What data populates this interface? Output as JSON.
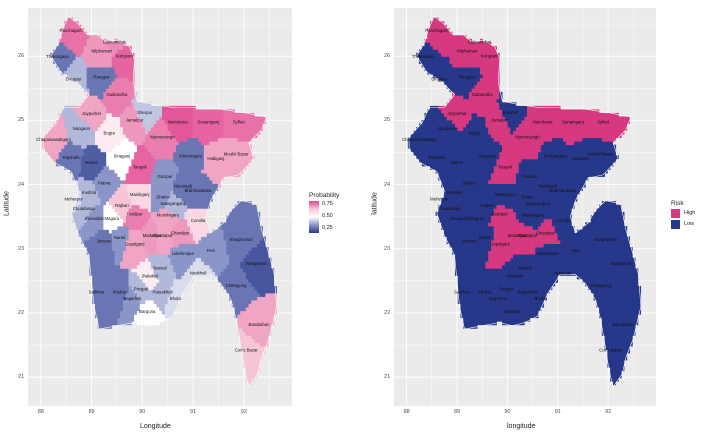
{
  "maps": [
    {
      "id": "probability",
      "xlabel": "Longitude",
      "ylabel": "Latitude",
      "x_ticks": [
        "88",
        "89",
        "90",
        "91",
        "92"
      ],
      "y_ticks": [
        "26",
        "25",
        "24",
        "23",
        "22",
        "21"
      ],
      "legend": {
        "title": "Probability",
        "labels": [
          "0.75",
          "0.50",
          "0.25"
        ],
        "gradient": [
          "#e0448f",
          "#f6c5d6",
          "#ffffff",
          "#8b95c8",
          "#27378a"
        ]
      }
    },
    {
      "id": "risk",
      "xlabel": "longitude",
      "ylabel": "latitude",
      "x_ticks": [
        "88",
        "89",
        "90",
        "91",
        "92"
      ],
      "y_ticks": [
        "26",
        "25",
        "24",
        "23",
        "22",
        "21"
      ],
      "legend": {
        "title": "Risk",
        "items": [
          {
            "label": "High",
            "color": "#d6397f"
          },
          {
            "label": "Low",
            "color": "#27378a"
          }
        ]
      }
    }
  ],
  "districts": [
    {
      "name": "Panchagarh",
      "lon": 88.6,
      "lat": 26.38,
      "prob": 0.78,
      "risk": "High"
    },
    {
      "name": "Lalmonirhat",
      "lon": 89.45,
      "lat": 26.2,
      "prob": 0.74,
      "risk": "High"
    },
    {
      "name": "Nilphamari",
      "lon": 89.2,
      "lat": 26.06,
      "prob": 0.72,
      "risk": "High"
    },
    {
      "name": "Kurigram",
      "lon": 89.65,
      "lat": 25.98,
      "prob": 0.8,
      "risk": "High"
    },
    {
      "name": "Thakurgaon",
      "lon": 88.33,
      "lat": 25.97,
      "prob": 0.3,
      "risk": "Low"
    },
    {
      "name": "Dinajpur",
      "lon": 88.65,
      "lat": 25.62,
      "prob": 0.4,
      "risk": "Low"
    },
    {
      "name": "Rangpur",
      "lon": 89.2,
      "lat": 25.65,
      "prob": 0.3,
      "risk": "Low"
    },
    {
      "name": "Gaibandha",
      "lon": 89.5,
      "lat": 25.38,
      "prob": 0.76,
      "risk": "High"
    },
    {
      "name": "Joypurhat",
      "lon": 89.0,
      "lat": 25.08,
      "prob": 0.7,
      "risk": "High"
    },
    {
      "name": "Jamalpur",
      "lon": 89.85,
      "lat": 24.98,
      "prob": 0.72,
      "risk": "High"
    },
    {
      "name": "Sherpur",
      "lon": 90.05,
      "lat": 25.1,
      "prob": 0.42,
      "risk": "Low"
    },
    {
      "name": "Netrokona",
      "lon": 90.7,
      "lat": 24.95,
      "prob": 0.82,
      "risk": "High"
    },
    {
      "name": "Sunamganj",
      "lon": 91.3,
      "lat": 24.95,
      "prob": 0.8,
      "risk": "High"
    },
    {
      "name": "Sylhet",
      "lon": 91.9,
      "lat": 24.95,
      "prob": 0.78,
      "risk": "High"
    },
    {
      "name": "Naogaon",
      "lon": 88.8,
      "lat": 24.85,
      "prob": 0.4,
      "risk": "Low"
    },
    {
      "name": "Chapainawabganj",
      "lon": 88.25,
      "lat": 24.68,
      "prob": 0.7,
      "risk": "Low"
    },
    {
      "name": "Bogra",
      "lon": 89.35,
      "lat": 24.78,
      "prob": 0.55,
      "risk": "Low"
    },
    {
      "name": "Mymensingh",
      "lon": 90.4,
      "lat": 24.72,
      "prob": 0.76,
      "risk": "High"
    },
    {
      "name": "Moulvi Bazar",
      "lon": 91.85,
      "lat": 24.45,
      "prob": 0.7,
      "risk": "Low"
    },
    {
      "name": "Habiganj",
      "lon": 91.45,
      "lat": 24.38,
      "prob": 0.7,
      "risk": "Low"
    },
    {
      "name": "Kishoreganj",
      "lon": 90.95,
      "lat": 24.42,
      "prob": 0.3,
      "risk": "Low"
    },
    {
      "name": "Rajshahi",
      "lon": 88.6,
      "lat": 24.4,
      "prob": 0.3,
      "risk": "Low"
    },
    {
      "name": "Sirajganj",
      "lon": 89.6,
      "lat": 24.42,
      "prob": 0.5,
      "risk": "Low"
    },
    {
      "name": "Natore",
      "lon": 89.0,
      "lat": 24.32,
      "prob": 0.26,
      "risk": "Low"
    },
    {
      "name": "Tangail",
      "lon": 89.95,
      "lat": 24.25,
      "prob": 0.8,
      "risk": "High"
    },
    {
      "name": "Gazipur",
      "lon": 90.45,
      "lat": 24.1,
      "prob": 0.35,
      "risk": "Low"
    },
    {
      "name": "Pabna",
      "lon": 89.25,
      "lat": 24.0,
      "prob": 0.35,
      "risk": "Low"
    },
    {
      "name": "Narsingdi",
      "lon": 90.8,
      "lat": 23.95,
      "prob": 0.3,
      "risk": "Low"
    },
    {
      "name": "Brahmanbaria",
      "lon": 91.1,
      "lat": 23.88,
      "prob": 0.3,
      "risk": "Low"
    },
    {
      "name": "Kushtia",
      "lon": 88.95,
      "lat": 23.85,
      "prob": 0.4,
      "risk": "Low"
    },
    {
      "name": "Dhaka",
      "lon": 90.4,
      "lat": 23.78,
      "prob": 0.35,
      "risk": "Low"
    },
    {
      "name": "Narayanganj",
      "lon": 90.6,
      "lat": 23.68,
      "prob": 0.4,
      "risk": "Low"
    },
    {
      "name": "Meherpur",
      "lon": 88.65,
      "lat": 23.75,
      "prob": 0.45,
      "risk": "Low"
    },
    {
      "name": "Rajbari",
      "lon": 89.6,
      "lat": 23.65,
      "prob": 0.65,
      "risk": "Low"
    },
    {
      "name": "Manikganj",
      "lon": 89.95,
      "lat": 23.82,
      "prob": 0.6,
      "risk": "Low"
    },
    {
      "name": "Munshiganj",
      "lon": 90.5,
      "lat": 23.5,
      "prob": 0.7,
      "risk": "Low"
    },
    {
      "name": "Chuadanga",
      "lon": 88.85,
      "lat": 23.6,
      "prob": 0.4,
      "risk": "Low"
    },
    {
      "name": "Comilla",
      "lon": 91.1,
      "lat": 23.42,
      "prob": 0.6,
      "risk": "Low"
    },
    {
      "name": "Jhenaidah",
      "lon": 89.05,
      "lat": 23.45,
      "prob": 0.35,
      "risk": "Low"
    },
    {
      "name": "Magura",
      "lon": 89.4,
      "lat": 23.45,
      "prob": 0.5,
      "risk": "Low"
    },
    {
      "name": "Faridpur",
      "lon": 89.85,
      "lat": 23.52,
      "prob": 0.76,
      "risk": "High"
    },
    {
      "name": "Madaripur",
      "lon": 90.2,
      "lat": 23.18,
      "prob": 0.72,
      "risk": "High"
    },
    {
      "name": "Shariatpur",
      "lon": 90.4,
      "lat": 23.18,
      "prob": 0.7,
      "risk": "High"
    },
    {
      "name": "Chandpur",
      "lon": 90.75,
      "lat": 23.22,
      "prob": 0.72,
      "risk": "High"
    },
    {
      "name": "Gopalganj",
      "lon": 89.85,
      "lat": 23.05,
      "prob": 0.7,
      "risk": "High"
    },
    {
      "name": "Jessore",
      "lon": 89.25,
      "lat": 23.1,
      "prob": 0.3,
      "risk": "Low"
    },
    {
      "name": "Narail",
      "lon": 89.55,
      "lat": 23.15,
      "prob": 0.35,
      "risk": "Low"
    },
    {
      "name": "Khagrachari",
      "lon": 91.95,
      "lat": 23.12,
      "prob": 0.3,
      "risk": "Low"
    },
    {
      "name": "Lakshmipur",
      "lon": 90.8,
      "lat": 22.9,
      "prob": 0.35,
      "risk": "Low"
    },
    {
      "name": "Feni",
      "lon": 91.35,
      "lat": 22.95,
      "prob": 0.35,
      "risk": "Low"
    },
    {
      "name": "Rangamati",
      "lon": 92.25,
      "lat": 22.75,
      "prob": 0.25,
      "risk": "Low"
    },
    {
      "name": "Barisal",
      "lon": 90.35,
      "lat": 22.68,
      "prob": 0.4,
      "risk": "Low"
    },
    {
      "name": "Jhalakati",
      "lon": 90.15,
      "lat": 22.55,
      "prob": 0.55,
      "risk": "Low"
    },
    {
      "name": "Noakhali",
      "lon": 91.1,
      "lat": 22.6,
      "prob": 0.45,
      "risk": "Low"
    },
    {
      "name": "Chittagong",
      "lon": 91.85,
      "lat": 22.4,
      "prob": 0.3,
      "risk": "Low"
    },
    {
      "name": "Satkhira",
      "lon": 89.1,
      "lat": 22.3,
      "prob": 0.3,
      "risk": "Low"
    },
    {
      "name": "Khulna",
      "lon": 89.55,
      "lat": 22.3,
      "prob": 0.3,
      "risk": "Low"
    },
    {
      "name": "Bagerhat",
      "lon": 89.8,
      "lat": 22.2,
      "prob": 0.35,
      "risk": "Low"
    },
    {
      "name": "Pirojpur",
      "lon": 89.98,
      "lat": 22.35,
      "prob": 0.4,
      "risk": "Low"
    },
    {
      "name": "Barguna",
      "lon": 90.1,
      "lat": 22.0,
      "prob": 0.5,
      "risk": "Low"
    },
    {
      "name": "Bhola",
      "lon": 90.65,
      "lat": 22.2,
      "prob": 0.45,
      "risk": "Low"
    },
    {
      "name": "Patuakhali",
      "lon": 90.4,
      "lat": 22.3,
      "prob": 0.4,
      "risk": "Low"
    },
    {
      "name": "Bandarban",
      "lon": 92.3,
      "lat": 21.8,
      "prob": 0.7,
      "risk": "Low"
    },
    {
      "name": "Cox's Bazar",
      "lon": 92.05,
      "lat": 21.4,
      "prob": 0.65,
      "risk": "Low"
    }
  ]
}
